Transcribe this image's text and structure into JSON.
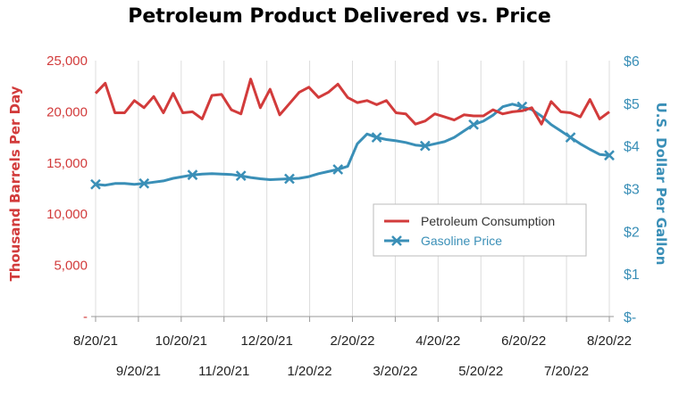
{
  "chart_data": {
    "type": "line",
    "title": "Petroleum Product Delivered vs. Price",
    "xlabel": "",
    "ylabel_left": "Thousand Barrels Per Day",
    "ylabel_right": "U.S. Dollar Per Gallon",
    "x_ticks_top_row": [
      "8/20/21",
      "10/20/21",
      "12/20/21",
      "2/20/22",
      "4/20/22",
      "6/20/22",
      "8/20/22"
    ],
    "x_ticks_bottom_row": [
      "9/20/21",
      "11/20/21",
      "1/20/22",
      "3/20/22",
      "5/20/22",
      "7/20/22"
    ],
    "y_left_ticks": [
      "-",
      "5,000",
      "10,000",
      "15,000",
      "20,000",
      "25,000"
    ],
    "y_left_range": [
      0,
      25000
    ],
    "y_right_ticks": [
      "$-",
      "$1",
      "$2",
      "$3",
      "$4",
      "$5",
      "$6"
    ],
    "y_right_range": [
      0,
      6
    ],
    "grid": "vertical lines only",
    "legend_position": "center-right",
    "colors": {
      "consumption": "#d23b3b",
      "gasoline": "#3a8fb7"
    },
    "series": [
      {
        "name": "Petroleum Consumption",
        "axis": "left",
        "values": [
          21800,
          22800,
          19900,
          19900,
          21100,
          20400,
          21500,
          19900,
          21800,
          19900,
          20000,
          19300,
          21600,
          21700,
          20200,
          19800,
          23200,
          20400,
          22200,
          19700,
          20800,
          21900,
          22400,
          21400,
          21900,
          22700,
          21400,
          20900,
          21100,
          20700,
          21100,
          19900,
          19800,
          18800,
          19100,
          19800,
          19500,
          19200,
          19700,
          19600,
          19600,
          20200,
          19800,
          20000,
          20100,
          20400,
          18800,
          21000,
          20000,
          19900,
          19500,
          21200,
          19300,
          20000
        ]
      },
      {
        "name": "Gasoline Price",
        "axis": "right",
        "values": [
          3.1,
          3.08,
          3.12,
          3.12,
          3.1,
          3.12,
          3.15,
          3.18,
          3.24,
          3.28,
          3.32,
          3.34,
          3.35,
          3.34,
          3.33,
          3.3,
          3.26,
          3.23,
          3.21,
          3.22,
          3.23,
          3.24,
          3.28,
          3.35,
          3.4,
          3.45,
          3.52,
          4.05,
          4.28,
          4.2,
          4.15,
          4.12,
          4.08,
          4.02,
          4.0,
          4.05,
          4.1,
          4.2,
          4.35,
          4.5,
          4.58,
          4.72,
          4.92,
          4.98,
          4.92,
          4.85,
          4.7,
          4.5,
          4.35,
          4.2,
          4.05,
          3.92,
          3.8,
          3.78
        ]
      }
    ],
    "marker_indices": [
      0,
      5,
      10,
      15,
      20,
      25,
      29,
      34,
      39,
      44,
      49,
      53
    ]
  }
}
